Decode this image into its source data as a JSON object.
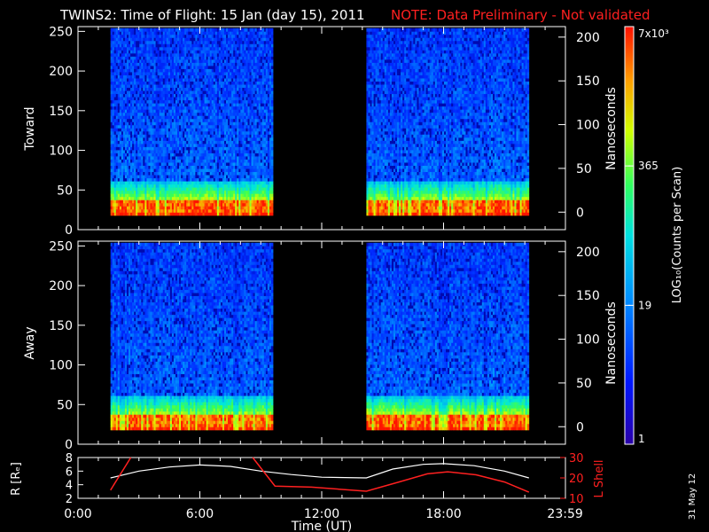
{
  "title": {
    "main": "TWINS2: Time of Flight: 15 Jan (day  15), 2011",
    "note": "NOTE: Data Preliminary - Not validated",
    "note_color": "#ff2020"
  },
  "stamp": "31 May 12",
  "chart_data": [
    {
      "type": "heatmap",
      "name": "toward",
      "ylabel": "Toward",
      "ylabel_right": "Nanoseconds",
      "ylim": [
        0,
        256
      ],
      "yticks": [
        0,
        50,
        100,
        150,
        200,
        250
      ],
      "ylim_right": [
        -20,
        212
      ],
      "yticks_right": [
        0,
        50,
        100,
        150,
        200
      ],
      "xlim_hours": [
        0,
        24
      ],
      "data_intervals_hours": [
        [
          1.6,
          9.6
        ],
        [
          14.2,
          22.2
        ]
      ],
      "peak_channel": 28
    },
    {
      "type": "heatmap",
      "name": "away",
      "ylabel": "Away",
      "ylabel_right": "Nanoseconds",
      "ylim": [
        0,
        256
      ],
      "yticks": [
        0,
        50,
        100,
        150,
        200,
        250
      ],
      "ylim_right": [
        -20,
        212
      ],
      "yticks_right": [
        0,
        50,
        100,
        150,
        200
      ],
      "xlim_hours": [
        0,
        24
      ],
      "data_intervals_hours": [
        [
          1.6,
          9.6
        ],
        [
          14.2,
          22.2
        ]
      ],
      "peak_channel": 28
    },
    {
      "type": "line",
      "name": "ephemeris",
      "ylabel": "R [Rₑ]",
      "ylabel_right": "L Shell",
      "ylim": [
        2,
        8
      ],
      "yticks": [
        2,
        4,
        6,
        8
      ],
      "ylim_right": [
        10,
        30
      ],
      "yticks_right": [
        10,
        20,
        30
      ],
      "x": [
        1.6,
        3,
        4.5,
        6,
        7.5,
        9,
        10.5,
        12,
        14.2,
        15.5,
        17,
        18,
        19.5,
        21,
        22.2
      ],
      "series": [
        {
          "name": "R",
          "axis": "left",
          "color": "#ffffff",
          "values": [
            5.0,
            6.0,
            6.6,
            6.9,
            6.7,
            6.0,
            5.5,
            5.1,
            5.0,
            6.3,
            7.0,
            7.1,
            6.8,
            6.0,
            5.0
          ]
        },
        {
          "name": "L Shell",
          "axis": "right",
          "color": "#ff2020",
          "values": [
            14,
            30,
            null,
            null,
            null,
            30,
            16,
            15.5,
            13.5,
            18,
            22,
            23,
            21.5,
            18,
            13
          ],
          "segments": [
            [
              1.6,
              14
            ],
            [
              2.6,
              30
            ],
            null,
            [
              8.6,
              30
            ],
            [
              9.7,
              16
            ],
            [
              11.5,
              15.5
            ],
            [
              14.2,
              13.5
            ],
            [
              15.8,
              18
            ],
            [
              17.2,
              22
            ],
            [
              18.2,
              23
            ],
            [
              19.6,
              21.5
            ],
            [
              21.0,
              18
            ],
            [
              22.2,
              13
            ]
          ]
        }
      ]
    }
  ],
  "xaxis": {
    "label": "Time (UT)",
    "ticks_hours": [
      0,
      6,
      12,
      18,
      23.983
    ],
    "tick_labels": [
      "0:00",
      "6:00",
      "12:00",
      "18:00",
      "23:59"
    ]
  },
  "colorbar": {
    "label": "LOG₁₀(Counts per Scan)",
    "scale": "log",
    "range": [
      1,
      7000
    ],
    "tick_labels": [
      "7x10³",
      "365",
      "19",
      "1"
    ],
    "tick_values": [
      7000,
      365,
      19,
      1
    ]
  }
}
